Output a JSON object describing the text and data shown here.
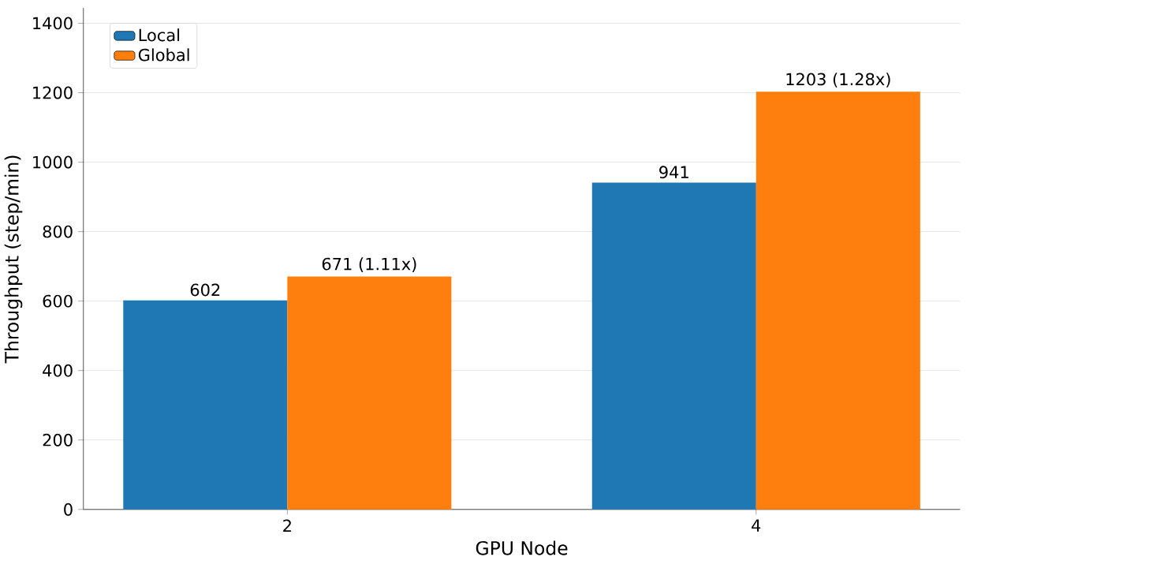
{
  "chart_data": {
    "type": "bar",
    "xlabel": "GPU Node",
    "ylabel": "Throughput (step/min)",
    "categories": [
      "2",
      "4"
    ],
    "series": [
      {
        "name": "Local",
        "color": "#1f77b4",
        "values": [
          602,
          941
        ],
        "value_labels": [
          "602",
          "941"
        ]
      },
      {
        "name": "Global",
        "color": "#ff7f0e",
        "values": [
          671,
          1203
        ],
        "value_labels": [
          "671 (1.11x)",
          "1203 (1.28x)"
        ]
      }
    ],
    "ylim": [
      0,
      1444
    ],
    "yticks": [
      0,
      200,
      400,
      600,
      800,
      1000,
      1200,
      1400
    ],
    "grid": "y",
    "legend": "top left"
  }
}
